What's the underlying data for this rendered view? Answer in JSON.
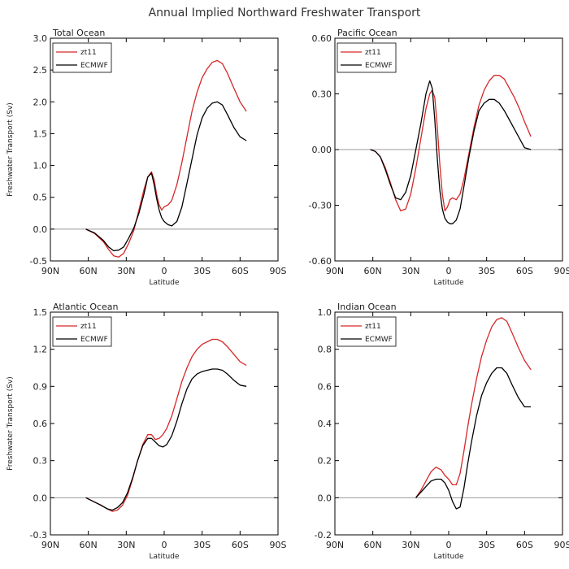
{
  "title": "Annual Implied Northward Freshwater Transport",
  "colors": {
    "zt11": "#d62728",
    "ECMWF": "#000000",
    "zero": "#999999"
  },
  "chart_data": [
    {
      "type": "line",
      "title": "Total Ocean",
      "xlabel": "Latitude",
      "ylabel": "Freshwater Transport (Sv)",
      "xlim": [
        -90,
        90
      ],
      "ylim": [
        -0.5,
        3.0
      ],
      "yticks": [
        -0.5,
        0.0,
        0.5,
        1.0,
        1.5,
        2.0,
        2.5,
        3.0
      ],
      "ytick_labels": [
        "-0.5",
        "0.0",
        "0.5",
        "1.0",
        "1.5",
        "2.0",
        "2.5",
        "3.0"
      ],
      "xticks": [
        -90,
        -60,
        -30,
        0,
        30,
        60,
        90
      ],
      "xtick_labels": [
        "90N",
        "60N",
        "30N",
        "0",
        "30S",
        "60S",
        "90S"
      ],
      "legend": [
        "zt11",
        "ECMWF"
      ],
      "series": [
        {
          "name": "zt11",
          "x": [
            -62,
            -55,
            -48,
            -44,
            -40,
            -36,
            -32,
            -28,
            -24,
            -20,
            -16,
            -13,
            -10,
            -8,
            -6,
            -4,
            -2,
            0,
            3,
            6,
            10,
            14,
            18,
            22,
            26,
            30,
            34,
            38,
            42,
            46,
            50,
            55,
            60,
            65
          ],
          "y": [
            0.0,
            -0.07,
            -0.2,
            -0.32,
            -0.42,
            -0.44,
            -0.38,
            -0.22,
            -0.02,
            0.3,
            0.62,
            0.82,
            0.9,
            0.78,
            0.55,
            0.38,
            0.3,
            0.35,
            0.38,
            0.45,
            0.7,
            1.05,
            1.45,
            1.85,
            2.15,
            2.38,
            2.52,
            2.62,
            2.65,
            2.6,
            2.45,
            2.22,
            2.0,
            1.85
          ]
        },
        {
          "name": "ECMWF",
          "x": [
            -62,
            -55,
            -48,
            -44,
            -40,
            -36,
            -32,
            -28,
            -24,
            -20,
            -16,
            -13,
            -10,
            -8,
            -6,
            -4,
            -2,
            0,
            3,
            6,
            10,
            14,
            18,
            22,
            26,
            30,
            34,
            38,
            42,
            46,
            50,
            55,
            60,
            65
          ],
          "y": [
            0.0,
            -0.06,
            -0.18,
            -0.28,
            -0.34,
            -0.33,
            -0.28,
            -0.14,
            0.02,
            0.25,
            0.55,
            0.82,
            0.88,
            0.7,
            0.48,
            0.3,
            0.18,
            0.12,
            0.07,
            0.05,
            0.12,
            0.35,
            0.72,
            1.1,
            1.48,
            1.75,
            1.9,
            1.98,
            2.0,
            1.95,
            1.8,
            1.6,
            1.45,
            1.39
          ]
        }
      ]
    },
    {
      "type": "line",
      "title": "Pacific Ocean",
      "xlabel": "Latitude",
      "ylabel": "",
      "xlim": [
        -90,
        90
      ],
      "ylim": [
        -0.6,
        0.6
      ],
      "yticks": [
        -0.6,
        -0.3,
        0.0,
        0.3,
        0.6
      ],
      "ytick_labels": [
        "-0.60",
        "-0.30",
        "0.00",
        "0.30",
        "0.60"
      ],
      "xticks": [
        -90,
        -60,
        -30,
        0,
        30,
        60,
        90
      ],
      "xtick_labels": [
        "90N",
        "60N",
        "30N",
        "0",
        "30S",
        "60S",
        "90S"
      ],
      "legend": [
        "zt11",
        "ECMWF"
      ],
      "series": [
        {
          "name": "zt11",
          "x": [
            -62,
            -58,
            -54,
            -50,
            -46,
            -42,
            -38,
            -34,
            -30,
            -26,
            -22,
            -18,
            -15,
            -13,
            -11,
            -9,
            -7,
            -5,
            -3,
            -1,
            1,
            3,
            6,
            9,
            12,
            16,
            20,
            24,
            28,
            32,
            36,
            40,
            44,
            48,
            52,
            56,
            60,
            65
          ],
          "y": [
            0.0,
            -0.01,
            -0.04,
            -0.1,
            -0.18,
            -0.27,
            -0.33,
            -0.32,
            -0.24,
            -0.1,
            0.06,
            0.22,
            0.3,
            0.32,
            0.28,
            0.12,
            -0.08,
            -0.24,
            -0.33,
            -0.31,
            -0.27,
            -0.26,
            -0.27,
            -0.24,
            -0.16,
            -0.02,
            0.12,
            0.24,
            0.32,
            0.37,
            0.4,
            0.4,
            0.38,
            0.33,
            0.28,
            0.22,
            0.15,
            0.07
          ]
        },
        {
          "name": "ECMWF",
          "x": [
            -62,
            -58,
            -54,
            -50,
            -46,
            -42,
            -38,
            -34,
            -30,
            -26,
            -22,
            -18,
            -15,
            -13,
            -11,
            -9,
            -7,
            -5,
            -3,
            -1,
            1,
            3,
            6,
            9,
            12,
            16,
            20,
            24,
            28,
            32,
            36,
            40,
            44,
            48,
            52,
            56,
            60,
            65
          ],
          "y": [
            0.0,
            -0.01,
            -0.04,
            -0.11,
            -0.19,
            -0.26,
            -0.27,
            -0.23,
            -0.14,
            0.0,
            0.14,
            0.3,
            0.37,
            0.33,
            0.16,
            -0.05,
            -0.22,
            -0.32,
            -0.37,
            -0.39,
            -0.4,
            -0.4,
            -0.38,
            -0.32,
            -0.2,
            -0.04,
            0.1,
            0.21,
            0.25,
            0.27,
            0.27,
            0.25,
            0.21,
            0.16,
            0.11,
            0.06,
            0.01,
            0.0
          ]
        }
      ]
    },
    {
      "type": "line",
      "title": "Atlantic Ocean",
      "xlabel": "Latitude",
      "ylabel": "Freshwater Transport (Sv)",
      "xlim": [
        -90,
        90
      ],
      "ylim": [
        -0.3,
        1.5
      ],
      "yticks": [
        -0.3,
        0.0,
        0.3,
        0.6,
        0.9,
        1.2,
        1.5
      ],
      "ytick_labels": [
        "-0.3",
        "0.0",
        "0.3",
        "0.6",
        "0.9",
        "1.2",
        "1.5"
      ],
      "xticks": [
        -90,
        -60,
        -30,
        0,
        30,
        60,
        90
      ],
      "xtick_labels": [
        "90N",
        "60N",
        "30N",
        "0",
        "30S",
        "60S",
        "90S"
      ],
      "legend": [
        "zt11",
        "ECMWF"
      ],
      "series": [
        {
          "name": "zt11",
          "x": [
            -62,
            -56,
            -50,
            -45,
            -41,
            -37,
            -33,
            -29,
            -25,
            -21,
            -17,
            -13,
            -10,
            -7,
            -4,
            -1,
            2,
            6,
            10,
            14,
            18,
            22,
            26,
            30,
            34,
            38,
            42,
            46,
            50,
            55,
            60,
            65
          ],
          "y": [
            0.0,
            -0.03,
            -0.06,
            -0.09,
            -0.11,
            -0.1,
            -0.06,
            0.02,
            0.15,
            0.3,
            0.43,
            0.51,
            0.51,
            0.47,
            0.48,
            0.51,
            0.56,
            0.66,
            0.8,
            0.94,
            1.05,
            1.14,
            1.2,
            1.24,
            1.26,
            1.28,
            1.28,
            1.26,
            1.22,
            1.16,
            1.1,
            1.07
          ]
        },
        {
          "name": "ECMWF",
          "x": [
            -62,
            -56,
            -50,
            -45,
            -41,
            -37,
            -33,
            -29,
            -25,
            -21,
            -17,
            -13,
            -10,
            -7,
            -4,
            -1,
            2,
            6,
            10,
            14,
            18,
            22,
            26,
            30,
            34,
            38,
            42,
            46,
            50,
            55,
            60,
            65
          ],
          "y": [
            0.0,
            -0.03,
            -0.06,
            -0.09,
            -0.1,
            -0.08,
            -0.04,
            0.04,
            0.16,
            0.3,
            0.42,
            0.48,
            0.48,
            0.45,
            0.42,
            0.41,
            0.43,
            0.5,
            0.62,
            0.76,
            0.88,
            0.96,
            1.0,
            1.02,
            1.03,
            1.04,
            1.04,
            1.03,
            1.0,
            0.95,
            0.91,
            0.9
          ]
        }
      ]
    },
    {
      "type": "line",
      "title": "Indian Ocean",
      "xlabel": "Latitude",
      "ylabel": "",
      "xlim": [
        -90,
        90
      ],
      "ylim": [
        -0.2,
        1.0
      ],
      "yticks": [
        -0.2,
        0.0,
        0.2,
        0.4,
        0.6,
        0.8,
        1.0
      ],
      "ytick_labels": [
        "-0.2",
        "0.0",
        "0.2",
        "0.4",
        "0.6",
        "0.8",
        "1.0"
      ],
      "xticks": [
        -90,
        -60,
        -30,
        0,
        30,
        60,
        90
      ],
      "xtick_labels": [
        "90N",
        "60N",
        "30N",
        "0",
        "30S",
        "60S",
        "90S"
      ],
      "legend": [
        "zt11",
        "ECMWF"
      ],
      "series": [
        {
          "name": "zt11",
          "x": [
            -26,
            -22,
            -18,
            -14,
            -10,
            -6,
            -3,
            0,
            3,
            6,
            9,
            12,
            15,
            18,
            22,
            26,
            30,
            34,
            38,
            42,
            46,
            50,
            55,
            60,
            65
          ],
          "y": [
            0.0,
            0.04,
            0.09,
            0.14,
            0.165,
            0.15,
            0.12,
            0.1,
            0.07,
            0.07,
            0.13,
            0.25,
            0.38,
            0.5,
            0.64,
            0.76,
            0.85,
            0.92,
            0.96,
            0.97,
            0.95,
            0.89,
            0.81,
            0.74,
            0.69
          ]
        },
        {
          "name": "ECMWF",
          "x": [
            -26,
            -22,
            -18,
            -14,
            -10,
            -6,
            -3,
            0,
            3,
            6,
            9,
            12,
            15,
            18,
            22,
            26,
            30,
            34,
            38,
            42,
            46,
            50,
            55,
            60,
            65
          ],
          "y": [
            0.0,
            0.03,
            0.06,
            0.09,
            0.1,
            0.1,
            0.08,
            0.04,
            -0.02,
            -0.06,
            -0.05,
            0.05,
            0.18,
            0.3,
            0.44,
            0.55,
            0.62,
            0.67,
            0.7,
            0.7,
            0.67,
            0.61,
            0.54,
            0.49,
            0.49
          ]
        }
      ]
    }
  ]
}
